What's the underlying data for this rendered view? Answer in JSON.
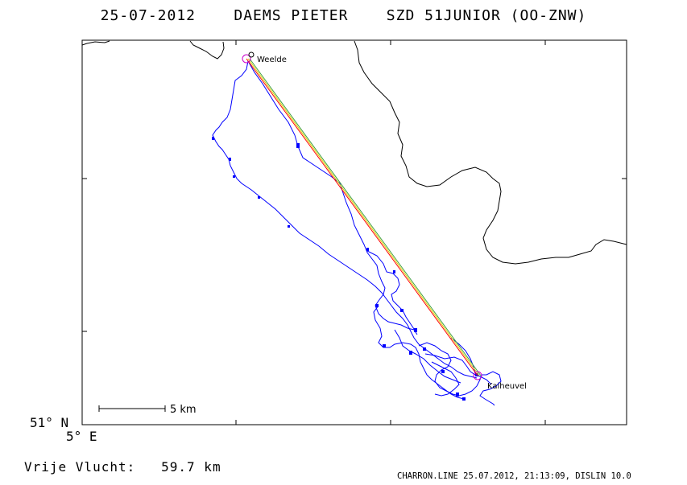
{
  "header": {
    "date": "25-07-2012",
    "pilot": "DAEMS PIETER",
    "glider": "SZD 51JUNIOR (OO-ZNW)"
  },
  "map": {
    "places": {
      "start": "Weelde",
      "finish": "Kaiheuvel"
    },
    "scale_label": "5 km",
    "lat_label": "51° N",
    "lon_label": "5° E",
    "colors": {
      "track": "#0000ff",
      "task_line_1": "#ff0000",
      "task_line_2": "#e0d000",
      "marker": "#cc00cc",
      "border": "#000000"
    }
  },
  "summary": {
    "label": "Vrije Vlucht:",
    "distance": "59.7 km"
  },
  "footer": {
    "text": "CHARRON.LINE 25.07.2012, 21:13:09, DISLIN 10.0"
  }
}
